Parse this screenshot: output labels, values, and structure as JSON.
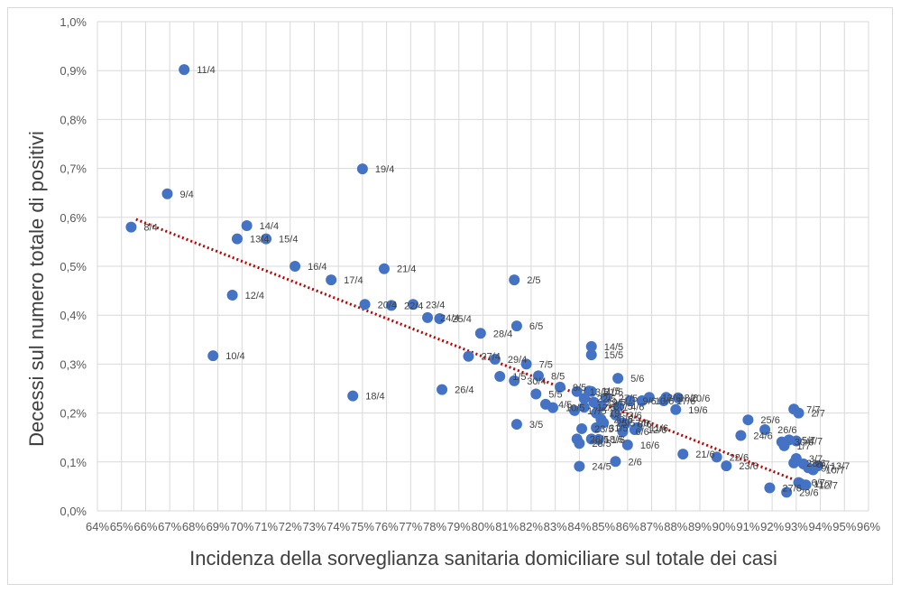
{
  "chart_data": {
    "type": "scatter",
    "title": "",
    "xlabel": "Incidenza della sorveglianza sanitaria domiciliare sul totale dei casi",
    "ylabel": "Decessi sul numero totale di positivi",
    "xlim": [
      64,
      96
    ],
    "ylim": [
      0,
      1.0
    ],
    "x_ticks": [
      "64%",
      "65%",
      "66%",
      "67%",
      "68%",
      "69%",
      "70%",
      "71%",
      "72%",
      "73%",
      "74%",
      "75%",
      "76%",
      "77%",
      "78%",
      "79%",
      "80%",
      "81%",
      "82%",
      "83%",
      "84%",
      "85%",
      "86%",
      "87%",
      "88%",
      "89%",
      "90%",
      "91%",
      "92%",
      "93%",
      "94%",
      "95%",
      "96%"
    ],
    "y_ticks": [
      "0,0%",
      "0,1%",
      "0,2%",
      "0,3%",
      "0,4%",
      "0,5%",
      "0,6%",
      "0,7%",
      "0,8%",
      "0,9%",
      "1,0%"
    ],
    "grid": true,
    "marker_color": "#4472C4",
    "trendline": {
      "type": "linear",
      "color": "#C00000",
      "style": "dotted",
      "from": [
        65.6,
        0.596
      ],
      "to": [
        93.2,
        0.058
      ]
    },
    "points": [
      {
        "label": "8/4",
        "x": 65.4,
        "y": 0.58
      },
      {
        "label": "9/4",
        "x": 66.9,
        "y": 0.648
      },
      {
        "label": "11/4",
        "x": 67.6,
        "y": 0.902
      },
      {
        "label": "10/4",
        "x": 68.8,
        "y": 0.317
      },
      {
        "label": "12/4",
        "x": 69.6,
        "y": 0.441
      },
      {
        "label": "13/4",
        "x": 69.8,
        "y": 0.556
      },
      {
        "label": "14/4",
        "x": 70.2,
        "y": 0.583
      },
      {
        "label": "15/4",
        "x": 71.0,
        "y": 0.556
      },
      {
        "label": "16/4",
        "x": 72.2,
        "y": 0.5
      },
      {
        "label": "17/4",
        "x": 73.7,
        "y": 0.472
      },
      {
        "label": "18/4",
        "x": 74.6,
        "y": 0.235
      },
      {
        "label": "19/4",
        "x": 75.0,
        "y": 0.699
      },
      {
        "label": "20/4",
        "x": 75.1,
        "y": 0.422
      },
      {
        "label": "21/4",
        "x": 75.9,
        "y": 0.495
      },
      {
        "label": "22/4",
        "x": 76.2,
        "y": 0.42
      },
      {
        "label": "23/4",
        "x": 77.1,
        "y": 0.422
      },
      {
        "label": "24/4",
        "x": 77.7,
        "y": 0.395
      },
      {
        "label": "25/4",
        "x": 78.2,
        "y": 0.393
      },
      {
        "label": "26/4",
        "x": 78.3,
        "y": 0.248
      },
      {
        "label": "27/4",
        "x": 79.4,
        "y": 0.316
      },
      {
        "label": "28/4",
        "x": 79.9,
        "y": 0.363
      },
      {
        "label": "29/4",
        "x": 80.5,
        "y": 0.31
      },
      {
        "label": "30/4",
        "x": 81.3,
        "y": 0.266
      },
      {
        "label": "1/5",
        "x": 80.7,
        "y": 0.275
      },
      {
        "label": "2/5",
        "x": 81.3,
        "y": 0.472
      },
      {
        "label": "3/5",
        "x": 81.4,
        "y": 0.177
      },
      {
        "label": "4/5",
        "x": 82.6,
        "y": 0.218
      },
      {
        "label": "5/5",
        "x": 82.2,
        "y": 0.239
      },
      {
        "label": "6/5",
        "x": 81.4,
        "y": 0.378
      },
      {
        "label": "7/5",
        "x": 81.8,
        "y": 0.3
      },
      {
        "label": "8/5",
        "x": 82.3,
        "y": 0.276
      },
      {
        "label": "9/5",
        "x": 83.2,
        "y": 0.253
      },
      {
        "label": "10/5",
        "x": 82.9,
        "y": 0.211
      },
      {
        "label": "11/5",
        "x": 84.4,
        "y": 0.245
      },
      {
        "label": "12/5",
        "x": 84.2,
        "y": 0.212
      },
      {
        "label": "13/5",
        "x": 83.9,
        "y": 0.244
      },
      {
        "label": "14/5",
        "x": 84.5,
        "y": 0.336
      },
      {
        "label": "15/5",
        "x": 84.5,
        "y": 0.319
      },
      {
        "label": "16/6",
        "x": 86.0,
        "y": 0.135
      },
      {
        "label": "17/5",
        "x": 83.8,
        "y": 0.205
      },
      {
        "label": "18/5",
        "x": 84.5,
        "y": 0.147
      },
      {
        "label": "19/5",
        "x": 84.7,
        "y": 0.2
      },
      {
        "label": "20/5",
        "x": 84.9,
        "y": 0.187
      },
      {
        "label": "21/5",
        "x": 84.5,
        "y": 0.244
      },
      {
        "label": "22/5",
        "x": 84.2,
        "y": 0.23
      },
      {
        "label": "23/5",
        "x": 84.1,
        "y": 0.168
      },
      {
        "label": "24/5",
        "x": 84.0,
        "y": 0.091
      },
      {
        "label": "25/5",
        "x": 85.0,
        "y": 0.18
      },
      {
        "label": "26/5",
        "x": 83.9,
        "y": 0.147
      },
      {
        "label": "27/5",
        "x": 85.1,
        "y": 0.231
      },
      {
        "label": "28/5",
        "x": 84.0,
        "y": 0.138
      },
      {
        "label": "29/5",
        "x": 84.6,
        "y": 0.222
      },
      {
        "label": "30/5",
        "x": 84.9,
        "y": 0.214
      },
      {
        "label": "31/5",
        "x": 84.7,
        "y": 0.17
      },
      {
        "label": "1/6",
        "x": 84.8,
        "y": 0.146
      },
      {
        "label": "2/6",
        "x": 85.5,
        "y": 0.101
      },
      {
        "label": "3/6",
        "x": 85.5,
        "y": 0.196
      },
      {
        "label": "4/6",
        "x": 85.6,
        "y": 0.213
      },
      {
        "label": "5/6",
        "x": 85.6,
        "y": 0.271
      },
      {
        "label": "6/6",
        "x": 85.8,
        "y": 0.162
      },
      {
        "label": "7/6",
        "x": 85.8,
        "y": 0.18
      },
      {
        "label": "8/6",
        "x": 85.9,
        "y": 0.178
      },
      {
        "label": "9/6",
        "x": 86.1,
        "y": 0.225
      },
      {
        "label": "10/6",
        "x": 86.6,
        "y": 0.225
      },
      {
        "label": "11/6",
        "x": 86.4,
        "y": 0.17
      },
      {
        "label": "12/6",
        "x": 86.3,
        "y": 0.166
      },
      {
        "label": "13/6",
        "x": 86.9,
        "y": 0.232
      },
      {
        "label": "17/6",
        "x": 87.5,
        "y": 0.225
      },
      {
        "label": "18/6",
        "x": 87.6,
        "y": 0.232
      },
      {
        "label": "19/6",
        "x": 88.0,
        "y": 0.207
      },
      {
        "label": "20/6",
        "x": 88.1,
        "y": 0.231
      },
      {
        "label": "21/6",
        "x": 88.3,
        "y": 0.116
      },
      {
        "label": "22/6",
        "x": 89.7,
        "y": 0.11
      },
      {
        "label": "23/6",
        "x": 90.1,
        "y": 0.092
      },
      {
        "label": "24/6",
        "x": 90.7,
        "y": 0.154
      },
      {
        "label": "25/6",
        "x": 91.0,
        "y": 0.186
      },
      {
        "label": "26/6",
        "x": 91.7,
        "y": 0.166
      },
      {
        "label": "27/6",
        "x": 91.9,
        "y": 0.047
      },
      {
        "label": "28/6",
        "x": 92.9,
        "y": 0.098
      },
      {
        "label": "29/6",
        "x": 92.6,
        "y": 0.038
      },
      {
        "label": "30/6",
        "x": 92.4,
        "y": 0.141
      },
      {
        "label": "1/7",
        "x": 92.5,
        "y": 0.133
      },
      {
        "label": "2/7",
        "x": 93.1,
        "y": 0.2
      },
      {
        "label": "3/7",
        "x": 93.0,
        "y": 0.107
      },
      {
        "label": "4/7",
        "x": 93.0,
        "y": 0.143
      },
      {
        "label": "5/7",
        "x": 92.7,
        "y": 0.145
      },
      {
        "label": "6/7",
        "x": 93.1,
        "y": 0.058
      },
      {
        "label": "7/7",
        "x": 92.9,
        "y": 0.208
      },
      {
        "label": "8/7",
        "x": 93.3,
        "y": 0.096
      },
      {
        "label": "9/7",
        "x": 93.5,
        "y": 0.088
      },
      {
        "label": "10/7",
        "x": 93.7,
        "y": 0.084
      },
      {
        "label": "11/7",
        "x": 93.2,
        "y": 0.055
      },
      {
        "label": "12/7",
        "x": 93.4,
        "y": 0.053
      },
      {
        "label": "13/7",
        "x": 93.9,
        "y": 0.092
      }
    ]
  }
}
